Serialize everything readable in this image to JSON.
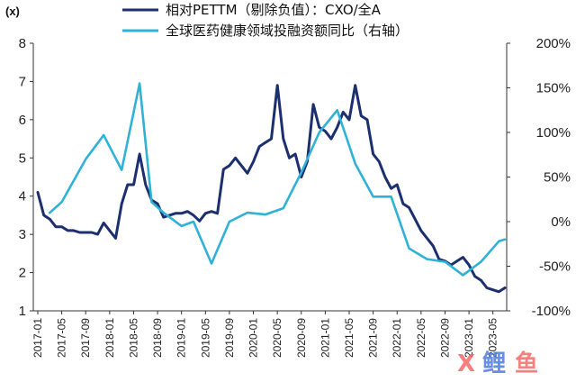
{
  "chart_data": {
    "type": "line",
    "y_unit_label": "(x)",
    "x": [
      "2017-01",
      "2017-03",
      "2017-05",
      "2017-07",
      "2017-09",
      "2017-11",
      "2018-01",
      "2018-03",
      "2018-05",
      "2018-07",
      "2018-09",
      "2018-11",
      "2019-01",
      "2019-03",
      "2019-05",
      "2019-07",
      "2019-09",
      "2019-11",
      "2020-01",
      "2020-03",
      "2020-05",
      "2020-07",
      "2020-09",
      "2020-11",
      "2021-01",
      "2021-03",
      "2021-05",
      "2021-07",
      "2021-09",
      "2021-11",
      "2022-01",
      "2022-03",
      "2022-05",
      "2022-07",
      "2022-09",
      "2022-11",
      "2023-01",
      "2023-03",
      "2023-05",
      "2023-07"
    ],
    "x_tick_labels": [
      "2017-01",
      "2017-05",
      "2017-09",
      "2018-01",
      "2018-05",
      "2018-09",
      "2019-01",
      "2019-05",
      "2019-09",
      "2020-01",
      "2020-05",
      "2020-09",
      "2021-01",
      "2021-05",
      "2021-09",
      "2022-01",
      "2022-05",
      "2022-09",
      "2023-01",
      "2023-05"
    ],
    "ylim_left": [
      1,
      8
    ],
    "yticks_left": [
      "1",
      "2",
      "3",
      "4",
      "5",
      "6",
      "7",
      "8"
    ],
    "ylim_right": [
      -100,
      200
    ],
    "yticks_right": [
      "-100%",
      "-50%",
      "0%",
      "50%",
      "100%",
      "150%",
      "200%"
    ],
    "legend_position": "top",
    "series": [
      {
        "name": "相对PETTM（剔除负值）：CXO/全A",
        "axis": "left",
        "color": "#1c2f6e",
        "x": [
          "2017-01",
          "2017-02",
          "2017-03",
          "2017-04",
          "2017-05",
          "2017-06",
          "2017-07",
          "2017-08",
          "2017-09",
          "2017-10",
          "2017-11",
          "2017-12",
          "2018-01",
          "2018-02",
          "2018-03",
          "2018-04",
          "2018-05",
          "2018-06",
          "2018-07",
          "2018-08",
          "2018-09",
          "2018-10",
          "2018-11",
          "2018-12",
          "2019-01",
          "2019-02",
          "2019-03",
          "2019-04",
          "2019-05",
          "2019-06",
          "2019-07",
          "2019-08",
          "2019-09",
          "2019-10",
          "2019-11",
          "2019-12",
          "2020-01",
          "2020-02",
          "2020-03",
          "2020-04",
          "2020-05",
          "2020-06",
          "2020-07",
          "2020-08",
          "2020-09",
          "2020-10",
          "2020-11",
          "2020-12",
          "2021-01",
          "2021-02",
          "2021-03",
          "2021-04",
          "2021-05",
          "2021-06",
          "2021-07",
          "2021-08",
          "2021-09",
          "2021-10",
          "2021-11",
          "2021-12",
          "2022-01",
          "2022-02",
          "2022-03",
          "2022-04",
          "2022-05",
          "2022-06",
          "2022-07",
          "2022-08",
          "2022-09",
          "2022-10",
          "2022-11",
          "2022-12",
          "2023-01",
          "2023-02",
          "2023-03",
          "2023-04",
          "2023-05",
          "2023-06",
          "2023-07"
        ],
        "values": [
          4.1,
          3.5,
          3.4,
          3.2,
          3.2,
          3.1,
          3.1,
          3.05,
          3.05,
          3.05,
          3.0,
          3.3,
          3.1,
          2.9,
          3.8,
          4.3,
          4.3,
          5.1,
          4.3,
          3.9,
          3.8,
          3.45,
          3.5,
          3.55,
          3.55,
          3.6,
          3.5,
          3.35,
          3.55,
          3.6,
          3.55,
          4.7,
          4.8,
          5.0,
          4.8,
          4.6,
          4.9,
          5.3,
          5.4,
          5.5,
          6.9,
          5.5,
          5.0,
          5.1,
          4.5,
          4.9,
          6.4,
          5.8,
          5.7,
          5.5,
          5.8,
          6.2,
          6.0,
          6.9,
          6.1,
          6.0,
          5.1,
          4.9,
          4.5,
          4.2,
          4.3,
          3.8,
          3.7,
          3.4,
          3.1,
          2.9,
          2.7,
          2.35,
          2.3,
          2.2,
          2.3,
          2.4,
          2.2,
          1.9,
          1.8,
          1.6,
          1.55,
          1.5,
          1.6
        ]
      },
      {
        "name": "全球医药健康领域投融资额同比（右轴）",
        "axis": "right",
        "color": "#2fb2d6",
        "x": [
          "2017-03",
          "2017-05",
          "2017-09",
          "2017-12",
          "2018-03",
          "2018-06",
          "2018-08",
          "2018-10",
          "2019-01",
          "2019-03",
          "2019-06",
          "2019-09",
          "2019-12",
          "2020-03",
          "2020-06",
          "2020-09",
          "2020-12",
          "2021-03",
          "2021-06",
          "2021-09",
          "2021-12",
          "2022-03",
          "2022-06",
          "2022-09",
          "2022-12",
          "2023-03",
          "2023-06",
          "2023-07"
        ],
        "values": [
          10,
          22,
          70,
          97,
          58,
          155,
          22,
          10,
          -5,
          0,
          -47,
          0,
          10,
          8,
          15,
          55,
          100,
          125,
          65,
          28,
          28,
          -30,
          -42,
          -45,
          -60,
          -45,
          -22,
          -20
        ]
      }
    ]
  },
  "watermark": {
    "char1": "X",
    "char2": "鲤",
    "char3": "鱼",
    "color1": "#f56a6a",
    "color2": "#4b7be0",
    "color3": "#f56a6a"
  }
}
